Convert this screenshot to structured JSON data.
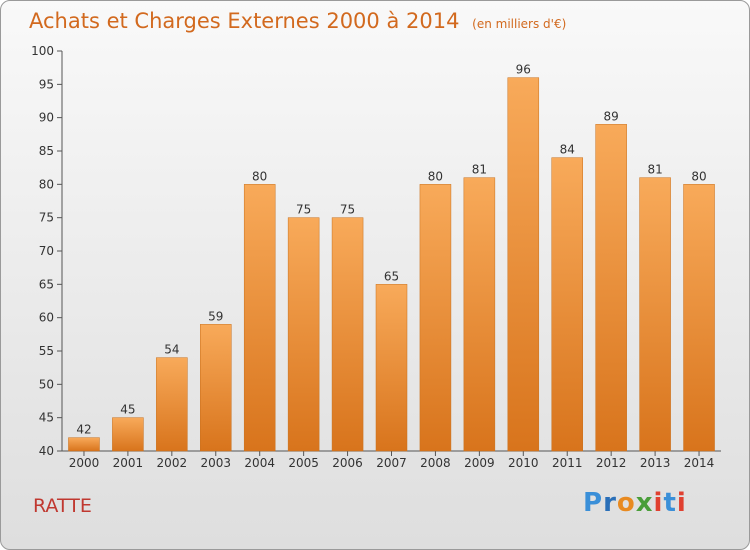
{
  "header": {
    "title": "Achats et Charges Externes 2000 à 2014",
    "subtitle": "(en milliers d'€)"
  },
  "footer": {
    "place": "RATTE",
    "logo": [
      "P",
      "r",
      "o",
      "x",
      "i",
      "t",
      "i"
    ]
  },
  "colors": {
    "title": "#d2691e",
    "place": "#c03830",
    "bar_top": "#f8aa5a",
    "bar_bottom": "#d8741c"
  },
  "chart_data": {
    "type": "bar",
    "title": "Achats et Charges Externes 2000 à 2014",
    "subtitle": "(en milliers d'€)",
    "categories": [
      "2000",
      "2001",
      "2002",
      "2003",
      "2004",
      "2005",
      "2006",
      "2007",
      "2008",
      "2009",
      "2010",
      "2011",
      "2012",
      "2013",
      "2014"
    ],
    "values": [
      42,
      45,
      54,
      59,
      80,
      75,
      75,
      65,
      80,
      81,
      96,
      84,
      89,
      81,
      80
    ],
    "ylim": [
      40,
      100
    ],
    "yticks": [
      40,
      45,
      50,
      55,
      60,
      65,
      70,
      75,
      80,
      85,
      90,
      95,
      100
    ],
    "grid": false,
    "legend": "none"
  }
}
